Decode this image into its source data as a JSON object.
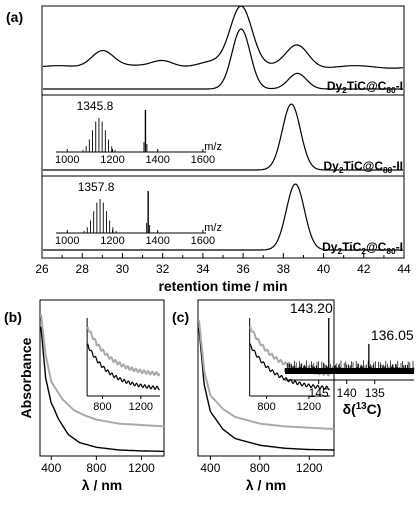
{
  "figure": {
    "panels": [
      "(a)",
      "(b)",
      "(c)"
    ]
  },
  "chart_data": [
    {
      "panel": "(a)",
      "type": "line",
      "xlabel": "retention time / min",
      "xlim": [
        26,
        44
      ],
      "xticks": [
        26,
        28,
        30,
        32,
        34,
        36,
        38,
        40,
        42,
        44
      ],
      "traces": [
        {
          "label": "",
          "peaks": [
            {
              "t": 29.0,
              "h": 0.28
            },
            {
              "t": 32.0,
              "h": 0.12
            },
            {
              "t": 34.4,
              "h": 0.06
            },
            {
              "t": 35.9,
              "h": 1.0
            },
            {
              "t": 38.7,
              "h": 0.35
            }
          ]
        },
        {
          "label": "Dy2TiC@C80-I",
          "label_parts": [
            "Dy",
            "2",
            "TiC@C",
            "80",
            "-I"
          ],
          "peaks": [
            {
              "t": 35.9,
              "h": 1.0
            },
            {
              "t": 38.7,
              "h": 0.26
            }
          ]
        },
        {
          "label": "Dy2TiC@C80-II",
          "label_parts": [
            "Dy",
            "2",
            "TiC@C",
            "80",
            "-II"
          ],
          "peaks": [
            {
              "t": 38.4,
              "h": 1.0
            }
          ],
          "inset": {
            "mass_label": "1345.8",
            "xlabel": "m/z",
            "xticks": [
              1000,
              1200,
              1400,
              1600
            ],
            "xlim": [
              950,
              1720
            ],
            "main_peak": 1345.8
          }
        },
        {
          "label": "Dy2TiC2@C80-I",
          "label_parts": [
            "Dy",
            "2",
            "TiC",
            "2",
            "@C",
            "80",
            "-I"
          ],
          "peaks": [
            {
              "t": 38.6,
              "h": 1.0
            }
          ],
          "inset": {
            "mass_label": "1357.8",
            "xlabel": "m/z",
            "xticks": [
              1000,
              1200,
              1400,
              1600
            ],
            "xlim": [
              950,
              1720
            ],
            "main_peak": 1357.8
          }
        }
      ]
    },
    {
      "panel": "(b)",
      "type": "line",
      "xlabel": "λ / nm",
      "ylabel": "Absorbance",
      "xlim": [
        300,
        1400
      ],
      "xticks": [
        400,
        800,
        1200
      ],
      "series": [
        {
          "color": "#000000",
          "points": [
            [
              300,
              1.0
            ],
            [
              350,
              0.55
            ],
            [
              400,
              0.36
            ],
            [
              420,
              0.33
            ],
            [
              460,
              0.25
            ],
            [
              550,
              0.13
            ],
            [
              650,
              0.07
            ],
            [
              800,
              0.035
            ],
            [
              1000,
              0.015
            ],
            [
              1200,
              0.008
            ],
            [
              1400,
              0.005
            ]
          ]
        },
        {
          "color": "#aaaaaa",
          "points": [
            [
              300,
              1.08
            ],
            [
              350,
              0.72
            ],
            [
              400,
              0.52
            ],
            [
              500,
              0.39
            ],
            [
              600,
              0.31
            ],
            [
              700,
              0.27
            ],
            [
              800,
              0.24
            ],
            [
              1000,
              0.21
            ],
            [
              1200,
              0.2
            ],
            [
              1400,
              0.19
            ]
          ]
        }
      ],
      "inset": {
        "xticks": [
          800,
          1200
        ],
        "xlim": [
          640,
          1400
        ]
      }
    },
    {
      "panel": "(c)",
      "type": "line",
      "xlabel": "λ / nm",
      "xlim": [
        300,
        1400
      ],
      "xticks": [
        400,
        800,
        1200
      ],
      "series": [
        {
          "color": "#000000",
          "points": [
            [
              300,
              1.0
            ],
            [
              350,
              0.5
            ],
            [
              400,
              0.3
            ],
            [
              500,
              0.17
            ],
            [
              600,
              0.1
            ],
            [
              800,
              0.05
            ],
            [
              1000,
              0.028
            ],
            [
              1200,
              0.018
            ],
            [
              1400,
              0.015
            ]
          ]
        },
        {
          "color": "#aaaaaa",
          "points": [
            [
              300,
              1.05
            ],
            [
              350,
              0.6
            ],
            [
              400,
              0.42
            ],
            [
              500,
              0.32
            ],
            [
              600,
              0.26
            ],
            [
              800,
              0.21
            ],
            [
              1000,
              0.19
            ],
            [
              1200,
              0.18
            ],
            [
              1400,
              0.17
            ]
          ]
        }
      ],
      "inset": {
        "xticks": [
          800,
          1200
        ],
        "xlim": [
          640,
          1400
        ]
      },
      "nmr_inset": {
        "xlabel": "δ(13C)",
        "xlabel_parts": [
          "δ(",
          "13",
          "C)"
        ],
        "xlim": [
          151,
          128
        ],
        "xticks": [
          145,
          140,
          135
        ],
        "peaks": [
          {
            "ppm": 143.2,
            "label": "143.20"
          },
          {
            "ppm": 136.05,
            "label": "136.05"
          }
        ]
      }
    }
  ]
}
